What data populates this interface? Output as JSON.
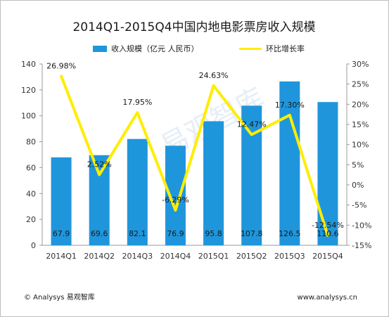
{
  "chart_data": {
    "type": "bar+line",
    "title": "2014Q1-2015Q4中国内地电影票房收入规模",
    "categories": [
      "2014Q1",
      "2014Q2",
      "2014Q3",
      "2014Q4",
      "2015Q1",
      "2015Q2",
      "2015Q3",
      "2015Q4"
    ],
    "bar_series": {
      "name": "收入规模（亿元 人民币）",
      "values": [
        67.9,
        69.6,
        82.1,
        76.9,
        95.8,
        107.8,
        126.5,
        110.6
      ],
      "value_labels": [
        "67.9",
        "69.6",
        "82.1",
        "76.9",
        "95.8",
        "107.8",
        "126.5",
        "110.6"
      ],
      "color": "#1f96dc"
    },
    "line_series": {
      "name": "环比增长率",
      "values": [
        26.98,
        2.52,
        17.95,
        -6.29,
        24.63,
        12.47,
        17.3,
        -12.54
      ],
      "value_labels": [
        "26.98%",
        "2.52%",
        "17.95%",
        "-6.29%",
        "24.63%",
        "12.47%",
        "17.30%",
        "-12.54%"
      ],
      "color": "#ffed00"
    },
    "y_left": {
      "range": [
        0,
        140
      ],
      "ticks": [
        "0",
        "20",
        "40",
        "60",
        "80",
        "100",
        "120",
        "140"
      ]
    },
    "y_right": {
      "range": [
        -15,
        30
      ],
      "ticks": [
        "-15%",
        "-10%",
        "-5%",
        "0%",
        "5%",
        "10%",
        "15%",
        "20%",
        "25%",
        "30%"
      ]
    },
    "legend_position": "top",
    "grid": false
  },
  "watermark": "易观智库",
  "footer": {
    "left": "© Analysys 易观智库",
    "right": "www.analysys.cn"
  }
}
